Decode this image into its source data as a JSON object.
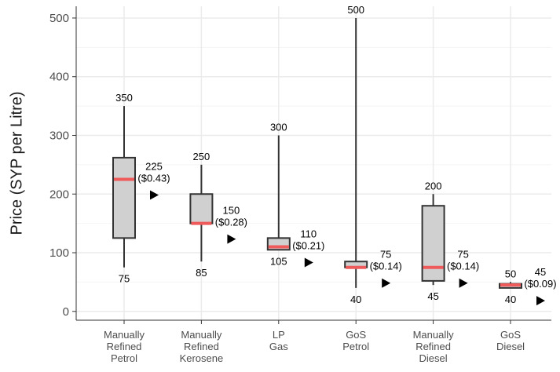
{
  "chart_data": {
    "type": "box",
    "title": "",
    "xlabel": "",
    "ylabel": "Price (SYP per Litre)",
    "ylim": [
      -15,
      520
    ],
    "yticks": [
      0,
      100,
      200,
      300,
      400,
      500
    ],
    "grid": true,
    "colors": {
      "box_fill": "#d0d0d0",
      "box_line": "#333333",
      "median": "#ef5b5b",
      "grid": "#ebebeb",
      "marker": "#000000"
    },
    "categories": [
      [
        "Manually",
        "Refined",
        "Petrol"
      ],
      [
        "Manually",
        "Refined",
        "Kerosene"
      ],
      [
        "LP",
        "Gas"
      ],
      [
        "GoS",
        "Petrol"
      ],
      [
        "Manually",
        "Refined",
        "Diesel"
      ],
      [
        "GoS",
        "Diesel"
      ]
    ],
    "boxes": [
      {
        "min": 75,
        "q1": 125,
        "median": 225,
        "q3": 262,
        "max": 350,
        "label_max": "350",
        "label_min": "75",
        "median_label": "225",
        "median_usd": "($0.43)"
      },
      {
        "min": 85,
        "q1": 150,
        "median": 150,
        "q3": 200,
        "max": 250,
        "label_max": "250",
        "label_min": "85",
        "median_label": "150",
        "median_usd": "($0.28)"
      },
      {
        "min": 105,
        "q1": 105,
        "median": 110,
        "q3": 125,
        "max": 300,
        "label_max": "300",
        "label_min": "105",
        "median_label": "110",
        "median_usd": "($0.21)"
      },
      {
        "min": 40,
        "q1": 75,
        "median": 75,
        "q3": 85,
        "max": 500,
        "label_max": "500",
        "label_min": "40",
        "median_label": "75",
        "median_usd": "($0.14)"
      },
      {
        "min": 45,
        "q1": 52,
        "median": 75,
        "q3": 180,
        "max": 200,
        "label_max": "200",
        "label_min": "45",
        "median_label": "75",
        "median_usd": "($0.14)"
      },
      {
        "min": 40,
        "q1": 40,
        "median": 45,
        "q3": 47,
        "max": 50,
        "label_max": "50",
        "label_min": "40",
        "median_label": "45",
        "median_usd": "($0.09)"
      }
    ]
  }
}
